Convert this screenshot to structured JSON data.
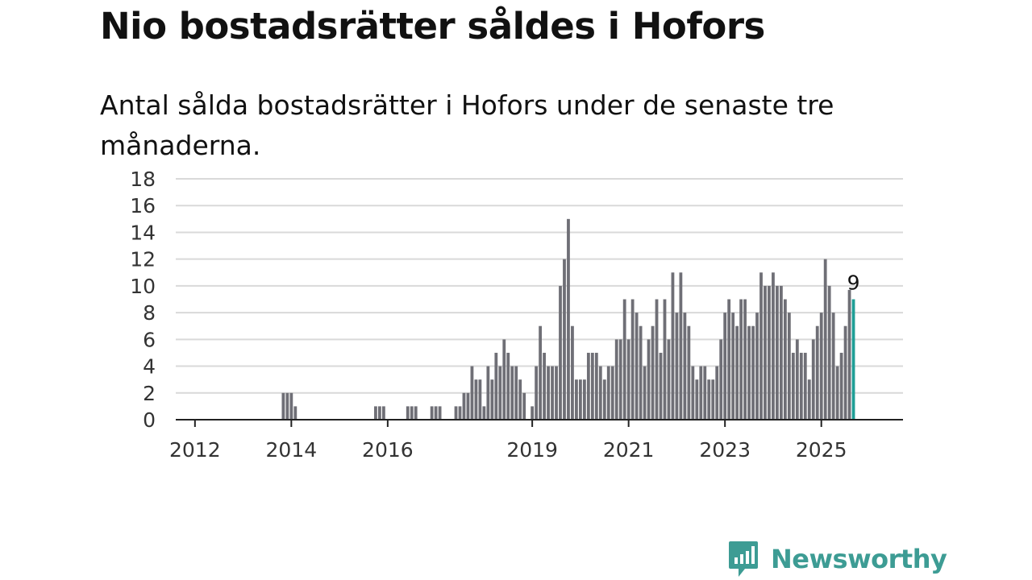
{
  "title": "Nio bostadsrätter såldes i Hofors",
  "subtitle": "Antal sålda bostadsrätter i Hofors under de senaste tre månaderna.",
  "brand": {
    "name": "Newsworthy",
    "icon": "newsworthy-logo-icon",
    "color": "#3d9c94"
  },
  "colors": {
    "bar": "#6f6f76",
    "highlight": "#1f9e96",
    "grid": "#d9d9d9",
    "axis": "#222222"
  },
  "chart_data": {
    "type": "bar",
    "x_unit": "month",
    "start": "2011-09",
    "values": [
      0,
      0,
      0,
      0,
      0,
      0,
      0,
      0,
      0,
      0,
      0,
      0,
      0,
      0,
      0,
      0,
      0,
      0,
      0,
      0,
      0,
      0,
      0,
      0,
      0,
      0,
      2,
      2,
      2,
      1,
      0,
      0,
      0,
      0,
      0,
      0,
      0,
      0,
      0,
      0,
      0,
      0,
      0,
      0,
      0,
      0,
      0,
      0,
      0,
      1,
      1,
      1,
      0,
      0,
      0,
      0,
      0,
      1,
      1,
      1,
      0,
      0,
      0,
      1,
      1,
      1,
      0,
      0,
      0,
      1,
      1,
      2,
      2,
      4,
      3,
      3,
      1,
      4,
      3,
      5,
      4,
      6,
      5,
      4,
      4,
      3,
      2,
      0,
      1,
      4,
      7,
      5,
      4,
      4,
      4,
      10,
      12,
      15,
      7,
      3,
      3,
      3,
      5,
      5,
      5,
      4,
      3,
      4,
      4,
      6,
      6,
      9,
      6,
      9,
      8,
      7,
      4,
      6,
      7,
      9,
      5,
      9,
      6,
      11,
      8,
      11,
      8,
      7,
      4,
      3,
      4,
      4,
      3,
      3,
      4,
      6,
      8,
      9,
      8,
      7,
      9,
      9,
      7,
      7,
      8,
      11,
      10,
      10,
      11,
      10,
      10,
      9,
      8,
      5,
      6,
      5,
      5,
      3,
      6,
      7,
      8,
      12,
      10,
      8,
      4,
      5,
      7,
      9.7,
      9
    ],
    "highlight_last": true,
    "last_label": "9",
    "ylim": [
      0,
      18
    ],
    "yticks": [
      "0",
      "2",
      "4",
      "6",
      "8",
      "10",
      "12",
      "14",
      "16",
      "18"
    ],
    "xticks": [
      {
        "label": "2012",
        "date": "2012-01"
      },
      {
        "label": "2014",
        "date": "2014-01"
      },
      {
        "label": "2016",
        "date": "2016-01"
      },
      {
        "label": "2019",
        "date": "2019-01"
      },
      {
        "label": "2021",
        "date": "2021-01"
      },
      {
        "label": "2023",
        "date": "2023-01"
      },
      {
        "label": "2025",
        "date": "2025-01"
      }
    ],
    "grid": true
  }
}
